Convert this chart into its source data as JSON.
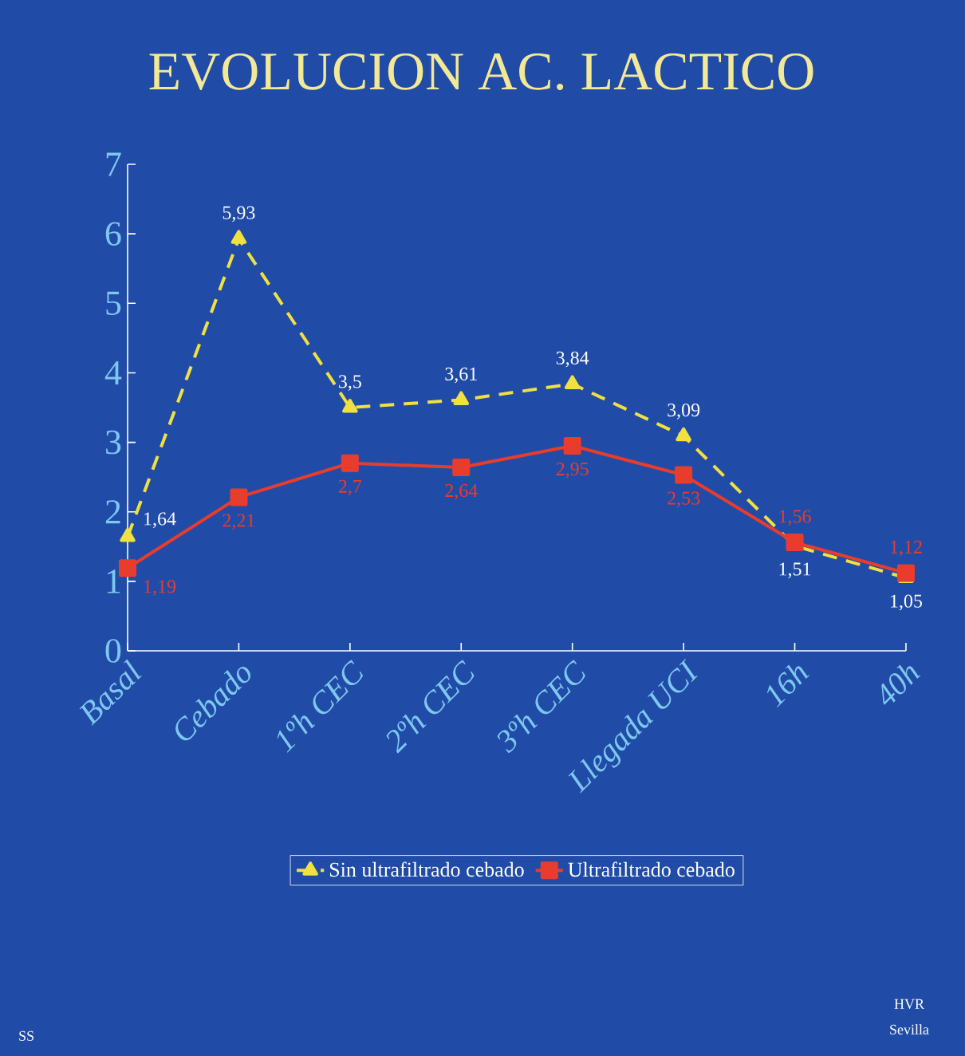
{
  "chart_data": {
    "type": "line",
    "title": "EVOLUCION AC. LACTICO",
    "categories": [
      "Basal",
      "Cebado",
      "1ºh CEC",
      "2ºh CEC",
      "3ºh CEC",
      "Llegada UCI",
      "16h",
      "40h"
    ],
    "series": [
      {
        "name": "Sin ultrafiltrado cebado",
        "color": "#f0e040",
        "marker": "triangle",
        "line_style": "dashed",
        "values": [
          1.64,
          5.93,
          3.5,
          3.61,
          3.84,
          3.09,
          1.51,
          1.05
        ],
        "value_labels": [
          "1,64",
          "5,93",
          "3,5",
          "3,61",
          "3,84",
          "3,09",
          "1,51",
          "1,05"
        ]
      },
      {
        "name": "Ultrafiltrado cebado",
        "color": "#e83c2c",
        "marker": "square",
        "line_style": "solid",
        "values": [
          1.19,
          2.21,
          2.7,
          2.64,
          2.95,
          2.53,
          1.56,
          1.12
        ],
        "value_labels": [
          "1,19",
          "2,21",
          "2,7",
          "2,64",
          "2,95",
          "2,53",
          "1,56",
          "1,12"
        ]
      }
    ],
    "ylim": [
      0,
      7
    ],
    "yticks": [
      0,
      1,
      2,
      3,
      4,
      5,
      6,
      7
    ],
    "legend": "bottom",
    "grid": false,
    "annotations": [
      "SS",
      "HVR",
      "Sevilla"
    ]
  }
}
